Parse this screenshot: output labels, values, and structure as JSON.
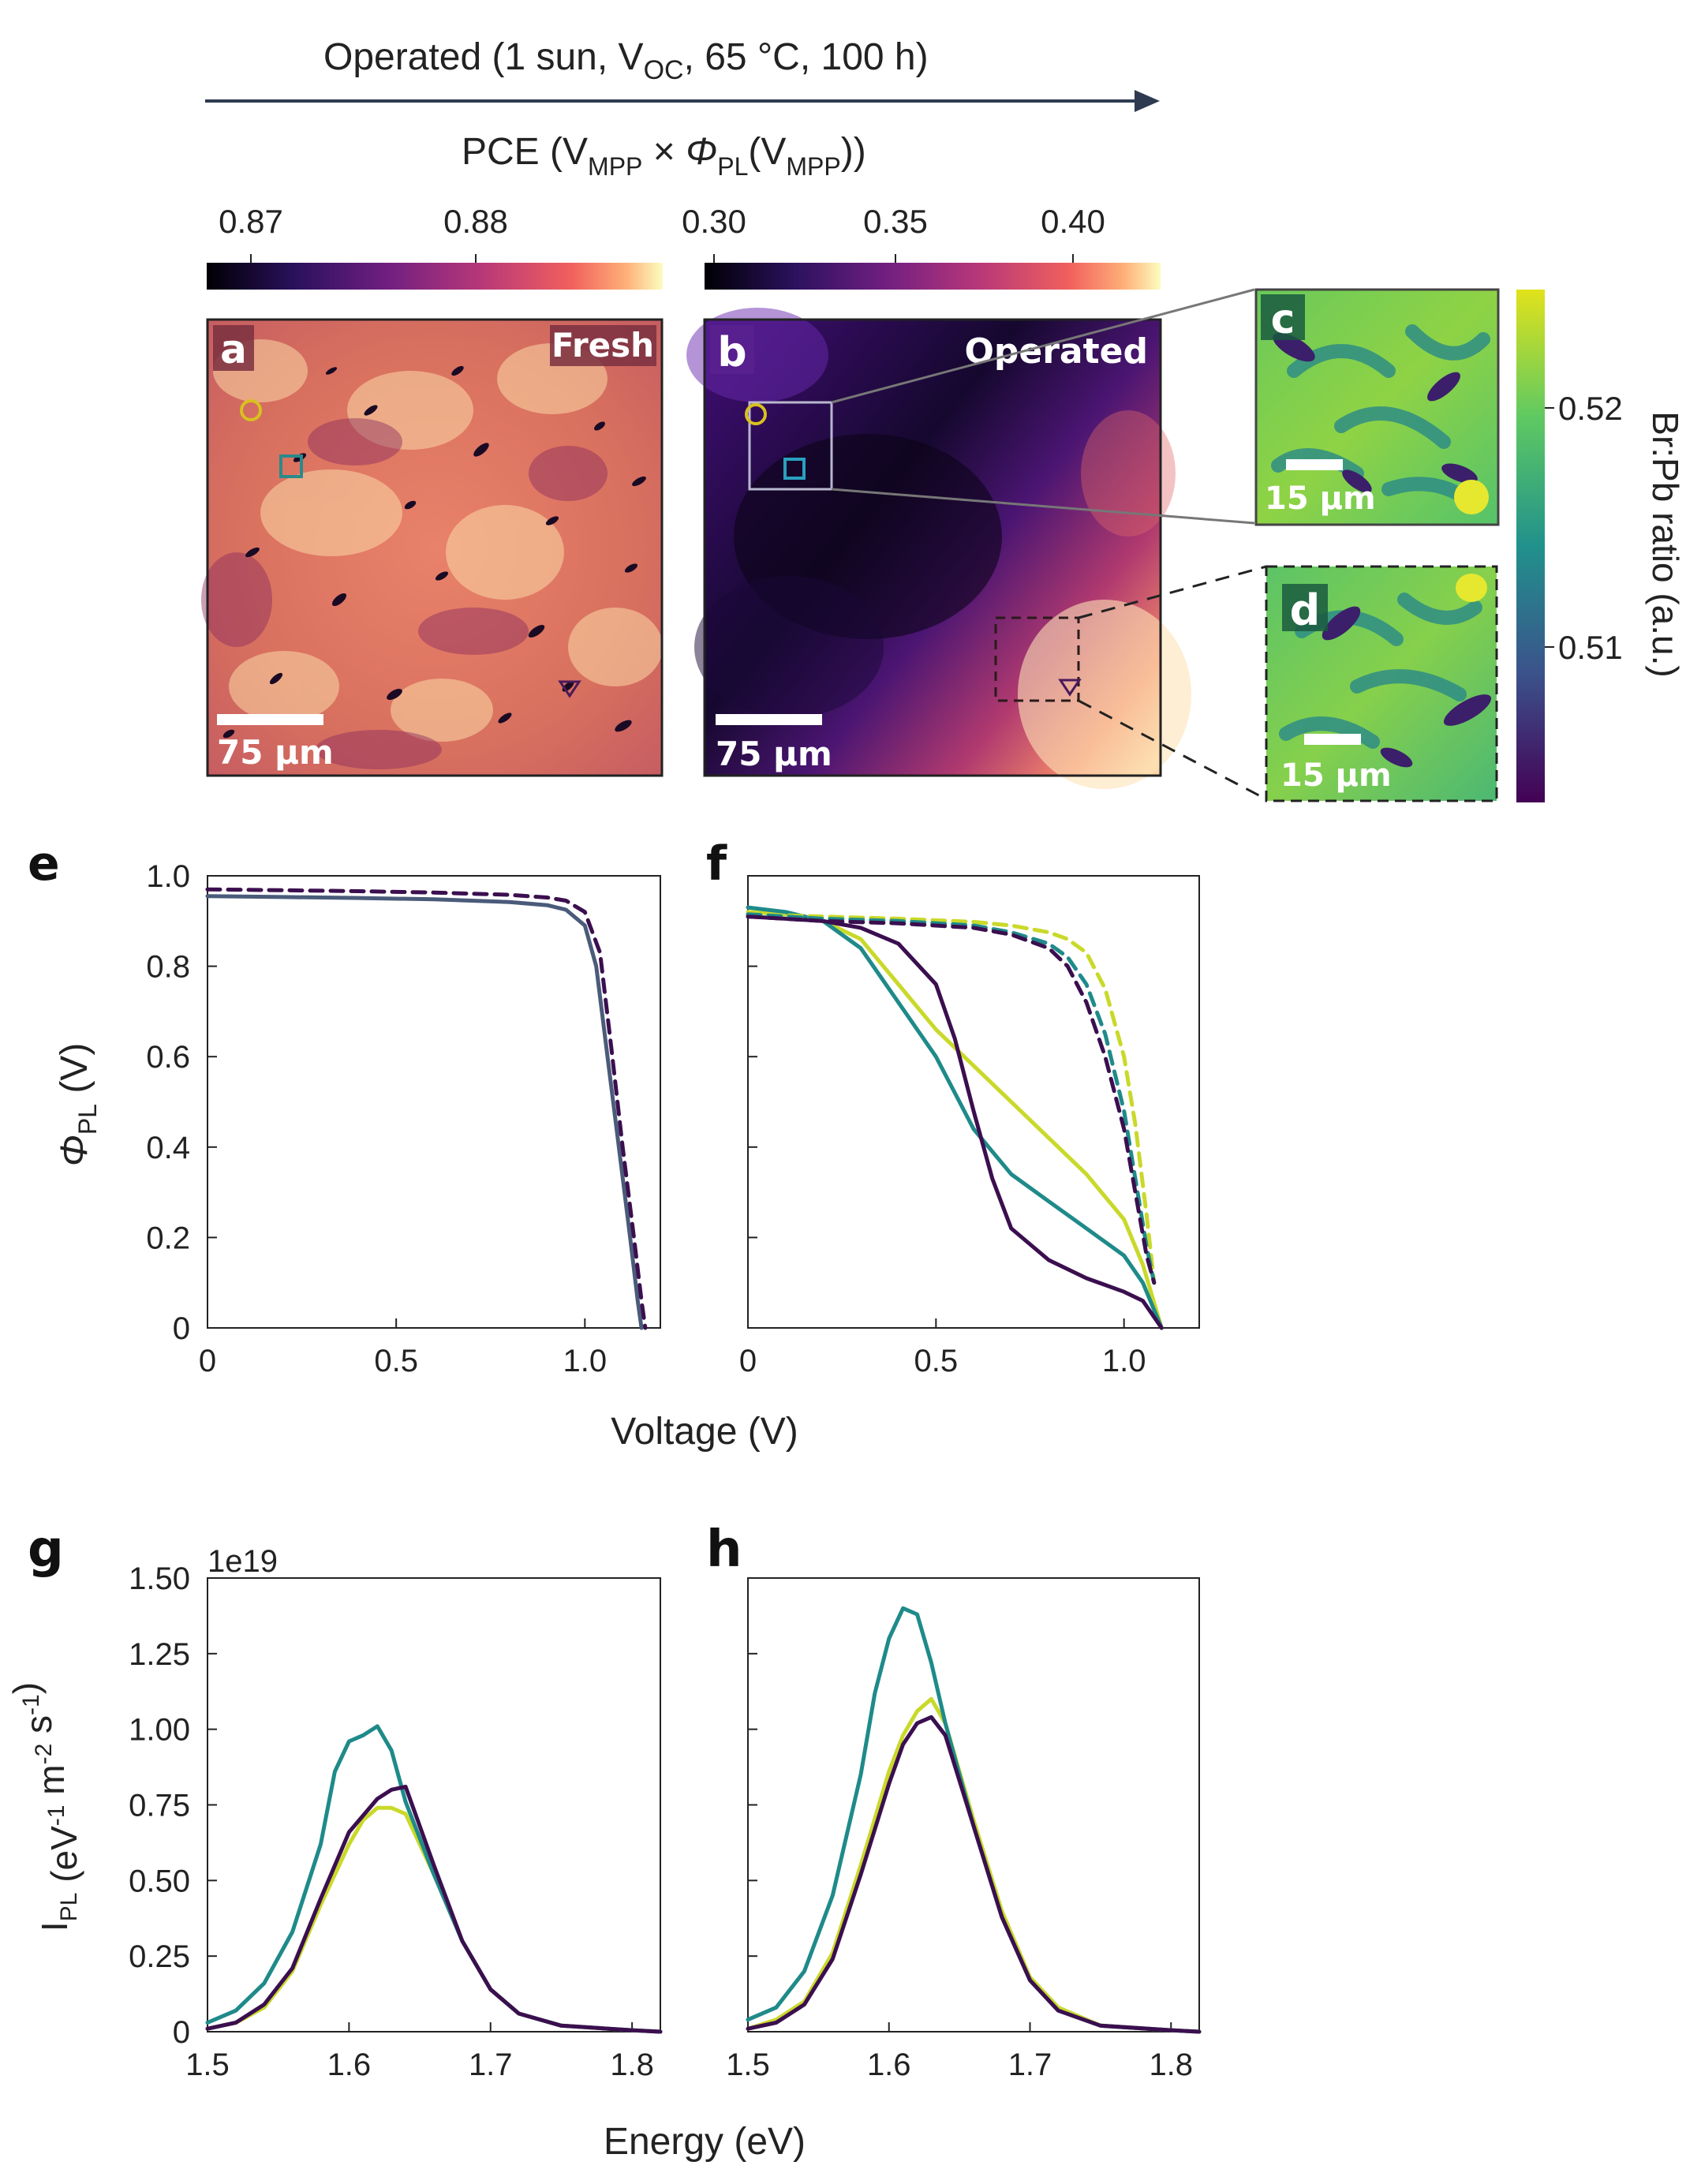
{
  "header": {
    "operated": "Operated (1 sun, V",
    "operated_sub": "OC",
    "operated_rest": ", 65 °C, 100 h)",
    "pce_pre": "PCE (V",
    "pce_sub1": "MPP",
    "pce_mid": " × ",
    "pce_phi": "Φ",
    "pce_sub2": "PL",
    "pce_paren": "(V",
    "pce_sub3": "MPP",
    "pce_end": "))"
  },
  "colorbars": {
    "left_ticks": [
      "0.87",
      "0.88"
    ],
    "right_ticks": [
      "0.30",
      "0.35",
      "0.40"
    ],
    "side_ticks": [
      "0.52",
      "0.51"
    ],
    "side_label": "Br:Pb ratio (a.u.)"
  },
  "images": {
    "a": {
      "label": "a",
      "tag": "Fresh",
      "scale": "75 µm"
    },
    "b": {
      "label": "b",
      "tag": "Operated",
      "scale": "75 µm"
    },
    "c": {
      "label": "c",
      "scale": "15 µm"
    },
    "d": {
      "label": "d",
      "scale": "15 µm"
    }
  },
  "colors": {
    "yellow": "#c9d92a",
    "teal": "#1f8a8a",
    "dark": "#3b0f4f",
    "slate": "#4a5b7a"
  },
  "chart_data": [
    {
      "panel": "e",
      "type": "line",
      "xlabel": "Voltage (V)",
      "ylabel": "Φ_PL (V)",
      "xlim": [
        0,
        1.2
      ],
      "ylim": [
        0,
        1.0
      ],
      "xticks": [
        "0",
        "0.5",
        "1.0"
      ],
      "yticks": [
        "0",
        "0.2",
        "0.4",
        "0.6",
        "0.8",
        "1.0"
      ],
      "series": [
        {
          "style": "solid",
          "color": "#4a5b7a",
          "x": [
            0,
            0.2,
            0.4,
            0.6,
            0.8,
            0.9,
            0.95,
            1.0,
            1.03,
            1.06,
            1.09,
            1.12,
            1.14,
            1.15
          ],
          "y": [
            0.955,
            0.953,
            0.951,
            0.948,
            0.942,
            0.935,
            0.925,
            0.89,
            0.8,
            0.6,
            0.4,
            0.2,
            0.06,
            0.0
          ]
        },
        {
          "style": "dashed",
          "color": "#3b0f4f",
          "x": [
            0,
            0.2,
            0.4,
            0.6,
            0.8,
            0.9,
            0.95,
            1.0,
            1.04,
            1.07,
            1.1,
            1.13,
            1.15,
            1.16
          ],
          "y": [
            0.97,
            0.968,
            0.966,
            0.963,
            0.958,
            0.952,
            0.945,
            0.92,
            0.83,
            0.62,
            0.4,
            0.2,
            0.06,
            0.0
          ]
        }
      ]
    },
    {
      "panel": "f",
      "type": "line",
      "xlabel": "Voltage (V)",
      "xlim": [
        0,
        1.2
      ],
      "ylim": [
        0,
        1.0
      ],
      "xticks": [
        "0",
        "0.5",
        "1.0"
      ],
      "series": [
        {
          "style": "solid",
          "color": "#c9d92a",
          "x": [
            0,
            0.1,
            0.2,
            0.3,
            0.4,
            0.5,
            0.6,
            0.7,
            0.8,
            0.9,
            1.0,
            1.05,
            1.1
          ],
          "y": [
            0.92,
            0.915,
            0.9,
            0.86,
            0.76,
            0.66,
            0.58,
            0.5,
            0.42,
            0.34,
            0.24,
            0.14,
            0.0
          ]
        },
        {
          "style": "solid",
          "color": "#1f8a8a",
          "x": [
            0,
            0.1,
            0.2,
            0.3,
            0.4,
            0.5,
            0.55,
            0.6,
            0.7,
            0.8,
            0.9,
            1.0,
            1.05,
            1.1
          ],
          "y": [
            0.93,
            0.92,
            0.9,
            0.84,
            0.72,
            0.6,
            0.52,
            0.44,
            0.34,
            0.28,
            0.22,
            0.16,
            0.1,
            0.0
          ]
        },
        {
          "style": "solid",
          "color": "#3b0f4f",
          "x": [
            0,
            0.1,
            0.2,
            0.3,
            0.4,
            0.5,
            0.55,
            0.6,
            0.65,
            0.7,
            0.8,
            0.9,
            1.0,
            1.05,
            1.1
          ],
          "y": [
            0.91,
            0.905,
            0.9,
            0.885,
            0.85,
            0.76,
            0.64,
            0.48,
            0.33,
            0.22,
            0.15,
            0.11,
            0.08,
            0.06,
            0.0
          ]
        },
        {
          "style": "dashed",
          "color": "#c9d92a",
          "x": [
            0,
            0.2,
            0.4,
            0.6,
            0.7,
            0.8,
            0.85,
            0.9,
            0.95,
            1.0,
            1.03,
            1.06,
            1.08
          ],
          "y": [
            0.915,
            0.91,
            0.905,
            0.898,
            0.89,
            0.875,
            0.86,
            0.83,
            0.75,
            0.6,
            0.45,
            0.25,
            0.1
          ]
        },
        {
          "style": "dashed",
          "color": "#1f8a8a",
          "x": [
            0,
            0.2,
            0.4,
            0.6,
            0.7,
            0.8,
            0.85,
            0.9,
            0.95,
            1.0,
            1.03,
            1.06,
            1.08
          ],
          "y": [
            0.915,
            0.905,
            0.9,
            0.89,
            0.875,
            0.85,
            0.82,
            0.76,
            0.65,
            0.48,
            0.33,
            0.18,
            0.1
          ]
        },
        {
          "style": "dashed",
          "color": "#3b0f4f",
          "x": [
            0,
            0.2,
            0.4,
            0.6,
            0.7,
            0.8,
            0.85,
            0.9,
            0.95,
            1.0,
            1.03,
            1.06,
            1.08
          ],
          "y": [
            0.91,
            0.9,
            0.895,
            0.885,
            0.87,
            0.84,
            0.8,
            0.72,
            0.6,
            0.44,
            0.3,
            0.16,
            0.1
          ]
        }
      ]
    },
    {
      "panel": "g",
      "type": "line",
      "xlabel": "Energy (eV)",
      "ylabel": "I_PL (eV^-1 m^-2 s^-1)",
      "offset_text": "1e19",
      "xlim": [
        1.5,
        1.82
      ],
      "ylim": [
        0,
        1.5
      ],
      "xticks": [
        "1.5",
        "1.6",
        "1.7",
        "1.8"
      ],
      "yticks": [
        "0",
        "0.25",
        "0.50",
        "0.75",
        "1.00",
        "1.25",
        "1.50"
      ],
      "series": [
        {
          "color": "#c9d92a",
          "x": [
            1.5,
            1.52,
            1.54,
            1.56,
            1.58,
            1.6,
            1.61,
            1.62,
            1.63,
            1.64,
            1.66,
            1.68,
            1.7,
            1.72,
            1.75,
            1.8,
            1.82
          ],
          "y": [
            0.01,
            0.03,
            0.08,
            0.2,
            0.42,
            0.62,
            0.7,
            0.74,
            0.74,
            0.72,
            0.52,
            0.3,
            0.14,
            0.06,
            0.02,
            0.005,
            0.0
          ]
        },
        {
          "color": "#1f8a8a",
          "x": [
            1.5,
            1.52,
            1.54,
            1.56,
            1.58,
            1.59,
            1.6,
            1.61,
            1.62,
            1.63,
            1.64,
            1.66,
            1.68,
            1.7,
            1.72,
            1.75,
            1.8,
            1.82
          ],
          "y": [
            0.03,
            0.07,
            0.16,
            0.33,
            0.62,
            0.86,
            0.96,
            0.98,
            1.01,
            0.93,
            0.76,
            0.52,
            0.3,
            0.14,
            0.06,
            0.02,
            0.005,
            0.0
          ]
        },
        {
          "color": "#3b0f4f",
          "x": [
            1.5,
            1.52,
            1.54,
            1.56,
            1.58,
            1.6,
            1.62,
            1.63,
            1.64,
            1.66,
            1.68,
            1.7,
            1.72,
            1.75,
            1.8,
            1.82
          ],
          "y": [
            0.01,
            0.03,
            0.09,
            0.21,
            0.44,
            0.66,
            0.77,
            0.8,
            0.81,
            0.55,
            0.3,
            0.14,
            0.06,
            0.02,
            0.005,
            0.0
          ]
        }
      ]
    },
    {
      "panel": "h",
      "type": "line",
      "xlabel": "Energy (eV)",
      "xlim": [
        1.5,
        1.82
      ],
      "ylim": [
        0,
        1.5
      ],
      "xticks": [
        "1.5",
        "1.6",
        "1.7",
        "1.8"
      ],
      "series": [
        {
          "color": "#c9d92a",
          "x": [
            1.5,
            1.52,
            1.54,
            1.56,
            1.58,
            1.6,
            1.61,
            1.62,
            1.63,
            1.64,
            1.66,
            1.68,
            1.7,
            1.72,
            1.75,
            1.8,
            1.82
          ],
          "y": [
            0.01,
            0.04,
            0.1,
            0.26,
            0.55,
            0.86,
            0.98,
            1.06,
            1.1,
            1.02,
            0.7,
            0.4,
            0.18,
            0.08,
            0.02,
            0.005,
            0.0
          ]
        },
        {
          "color": "#1f8a8a",
          "x": [
            1.5,
            1.52,
            1.54,
            1.56,
            1.58,
            1.59,
            1.6,
            1.61,
            1.62,
            1.63,
            1.64,
            1.66,
            1.68,
            1.7,
            1.72,
            1.75,
            1.8,
            1.82
          ],
          "y": [
            0.04,
            0.08,
            0.2,
            0.45,
            0.85,
            1.12,
            1.3,
            1.4,
            1.38,
            1.22,
            1.02,
            0.68,
            0.38,
            0.17,
            0.07,
            0.02,
            0.005,
            0.0
          ]
        },
        {
          "color": "#3b0f4f",
          "x": [
            1.5,
            1.52,
            1.54,
            1.56,
            1.58,
            1.6,
            1.61,
            1.62,
            1.63,
            1.64,
            1.66,
            1.68,
            1.7,
            1.72,
            1.75,
            1.8,
            1.82
          ],
          "y": [
            0.01,
            0.03,
            0.09,
            0.24,
            0.52,
            0.82,
            0.95,
            1.02,
            1.04,
            0.98,
            0.68,
            0.38,
            0.17,
            0.07,
            0.02,
            0.005,
            0.0
          ]
        }
      ]
    }
  ]
}
